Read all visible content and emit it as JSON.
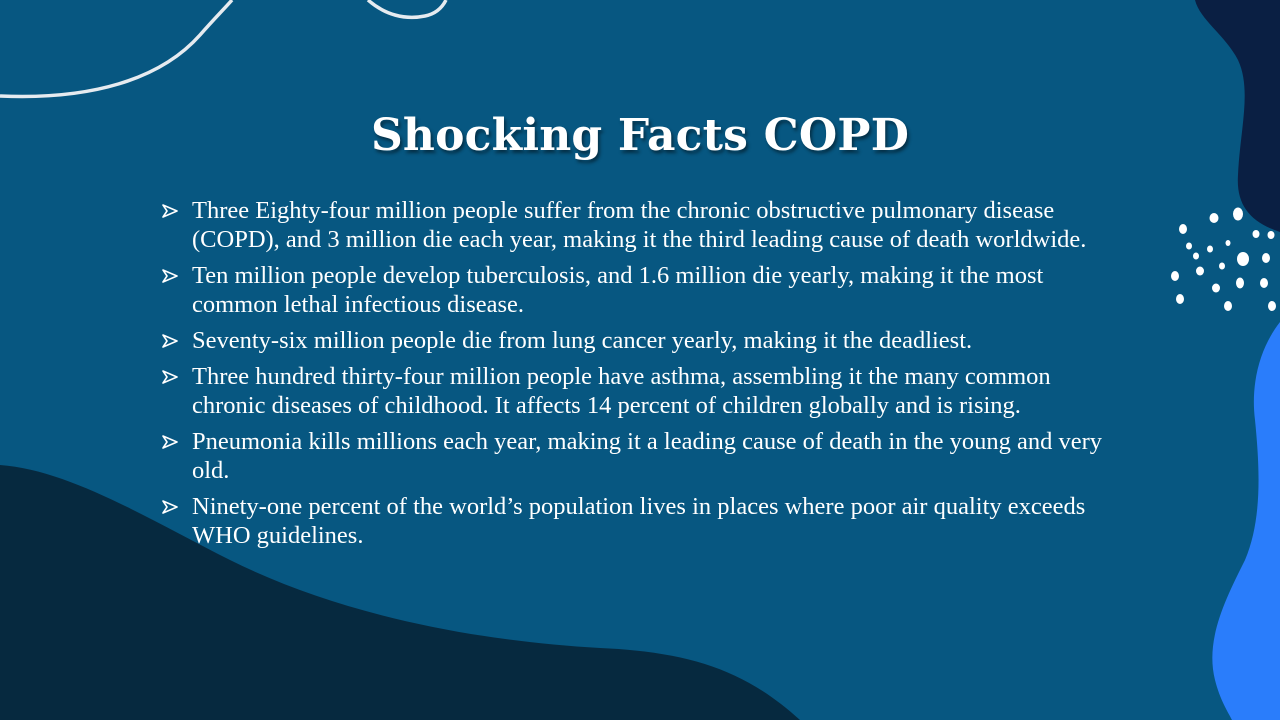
{
  "slide": {
    "title": "Shocking Facts COPD",
    "bullets": [
      "Three Eighty-four million people suffer from the chronic obstructive pulmonary disease (COPD), and 3 million die each year, making it the third leading cause of death worldwide.",
      "Ten million people develop tuberculosis, and 1.6 million die yearly, making it the most common lethal infectious disease.",
      "Seventy-six million people die from lung cancer yearly, making it the deadliest.",
      "Three hundred thirty-four million people have asthma, assembling it the many common chronic diseases of childhood. It affects 14 percent of children globally and is rising.",
      "Pneumonia kills millions each year, making it a leading cause of death in the young and very old.",
      "Ninety-one percent of the world’s population lives in places where poor air quality exceeds WHO guidelines."
    ]
  },
  "colors": {
    "background": "#075781",
    "dark_blob": "#06293f",
    "navy_blob": "#0a1f43",
    "bright_blue_blob": "#2a7dfb",
    "text": "#ffffff"
  },
  "icons": {
    "bullet": "arrowhead-bullet-icon"
  }
}
